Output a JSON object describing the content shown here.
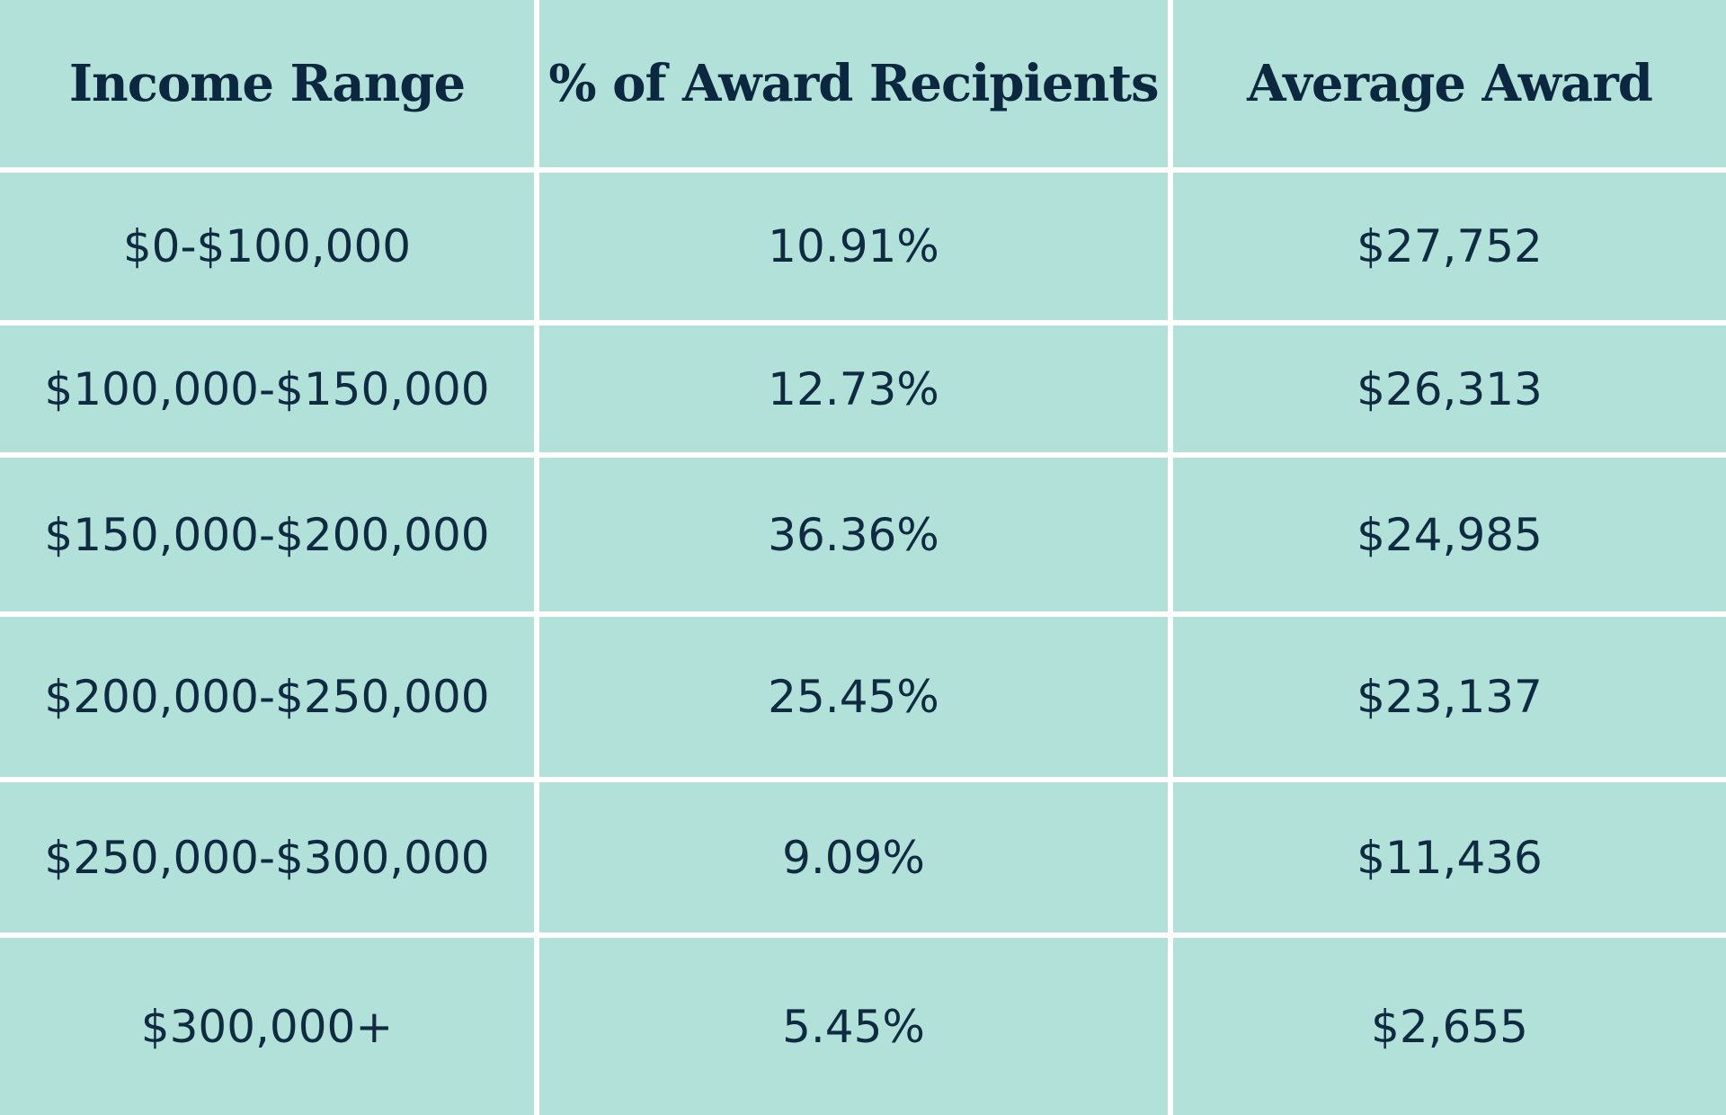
{
  "table": {
    "headers": [
      "Income Range",
      "% of Award Recipients",
      "Average Award"
    ],
    "rows": [
      [
        "$0-$100,000",
        "10.91%",
        "$27,752"
      ],
      [
        "$100,000-$150,000",
        "12.73%",
        "$26,313"
      ],
      [
        "$150,000-$200,000",
        "36.36%",
        "$24,985"
      ],
      [
        "$200,000-$250,000",
        "25.45%",
        "$23,137"
      ],
      [
        "$250,000-$300,000",
        "9.09%",
        "$11,436"
      ],
      [
        "$300,000+",
        "5.45%",
        "$2,655"
      ]
    ]
  },
  "colors": {
    "cell_background": "#b2e1d9",
    "grid_lines": "#ffffff",
    "text": "#0f2b42"
  }
}
